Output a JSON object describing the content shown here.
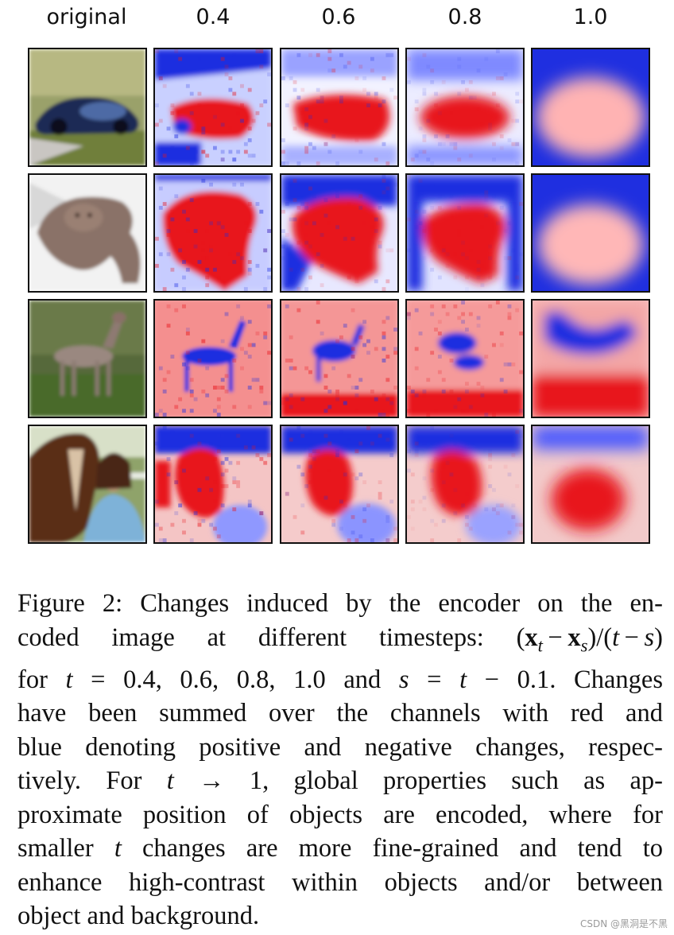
{
  "figure": {
    "column_headers": [
      "original",
      "0.4",
      "0.6",
      "0.8",
      "1.0"
    ],
    "rows": [
      {
        "subject": "car"
      },
      {
        "subject": "cat"
      },
      {
        "subject": "deer"
      },
      {
        "subject": "horse-and-person"
      }
    ],
    "colors": {
      "positive": "#e8141b",
      "negative": "#1f2fe0",
      "neutral": "#ffffff",
      "border": "#111111"
    }
  },
  "caption": {
    "lines": [
      [
        "Figure 2: Changes induced by the encoder on the en-"
      ],
      [
        "coded image at different timesteps: ",
        {
          "math": "(x_t − x_s)/(t − s)"
        }
      ],
      [
        "for ",
        {
          "math": "t = 0.4, 0.6, 0.8, 1.0"
        },
        " and ",
        {
          "math": "s = t − 0.1"
        },
        ". Changes"
      ],
      [
        "have been summed over the channels with red and"
      ],
      [
        "blue denoting positive and negative changes, respec-"
      ],
      [
        "tively.  For ",
        {
          "math": "t → 1"
        },
        ", global properties such as ap-"
      ],
      [
        "proximate position of objects are encoded, where for"
      ],
      [
        "smaller ",
        {
          "math": "t"
        },
        " changes are more fine-grained and tend to"
      ],
      [
        "enhance high-contrast within objects and/or between"
      ],
      [
        "object and background."
      ]
    ]
  },
  "watermark": "CSDN @黑洞是不黑"
}
